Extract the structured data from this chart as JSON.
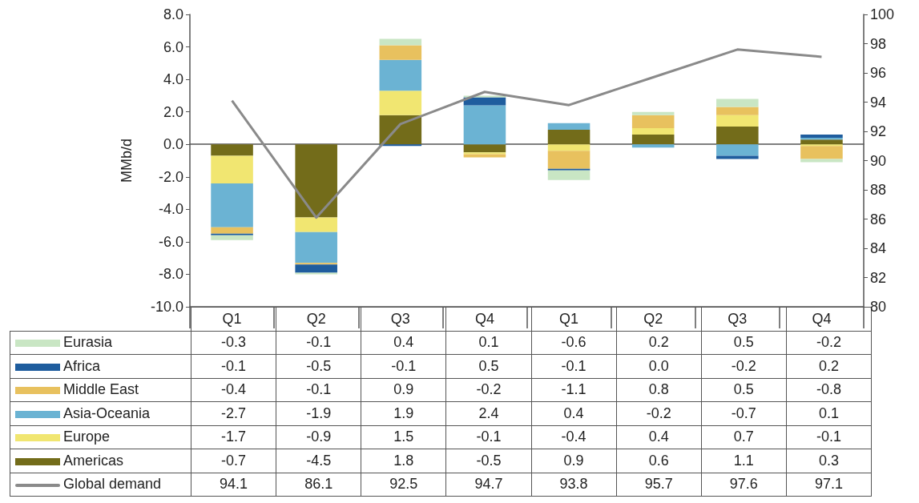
{
  "chart_data": {
    "type": "bar",
    "stacked": true,
    "ylabel": "MMb/d",
    "categories": [
      "Q1",
      "Q2",
      "Q3",
      "Q4",
      "Q1",
      "Q2",
      "Q3",
      "Q4"
    ],
    "series": [
      {
        "name": "Americas",
        "color": "#736c1a",
        "values": [
          -0.7,
          -4.5,
          1.8,
          -0.5,
          0.9,
          0.6,
          1.1,
          0.3
        ],
        "value_labels": [
          "-0.7",
          "-4.5",
          "1.8",
          "-0.5",
          "0.9",
          "0.6",
          "1.1",
          "0.3"
        ]
      },
      {
        "name": "Europe",
        "color": "#f1e671",
        "values": [
          -1.7,
          -0.9,
          1.5,
          -0.1,
          -0.4,
          0.4,
          0.7,
          -0.1
        ],
        "value_labels": [
          "-1.7",
          "-0.9",
          "1.5",
          "-0.1",
          "-0.4",
          "0.4",
          "0.7",
          "-0.1"
        ]
      },
      {
        "name": "Asia-Oceania",
        "color": "#6bb3d3",
        "values": [
          -2.7,
          -1.9,
          1.9,
          2.4,
          0.4,
          -0.2,
          -0.7,
          0.1
        ],
        "value_labels": [
          "-2.7",
          "-1.9",
          "1.9",
          "2.4",
          "0.4",
          "-0.2",
          "-0.7",
          "0.1"
        ]
      },
      {
        "name": "Middle East",
        "color": "#e8c15e",
        "values": [
          -0.4,
          -0.1,
          0.9,
          -0.2,
          -1.1,
          0.8,
          0.5,
          -0.8
        ],
        "value_labels": [
          "-0.4",
          "-0.1",
          "0.9",
          "-0.2",
          "-1.1",
          "0.8",
          "0.5",
          "-0.8"
        ]
      },
      {
        "name": "Africa",
        "color": "#1f5d9e",
        "values": [
          -0.1,
          -0.5,
          -0.1,
          0.5,
          -0.1,
          0.0,
          -0.2,
          0.2
        ],
        "value_labels": [
          "-0.1",
          "-0.5",
          "-0.1",
          "0.5",
          "-0.1",
          "0.0",
          "-0.2",
          "0.2"
        ]
      },
      {
        "name": "Eurasia",
        "color": "#c9e6c4",
        "values": [
          -0.3,
          -0.1,
          0.4,
          0.1,
          -0.6,
          0.2,
          0.5,
          -0.2
        ],
        "value_labels": [
          "-0.3",
          "-0.1",
          "0.4",
          "0.1",
          "-0.6",
          "0.2",
          "0.5",
          "-0.2"
        ]
      },
      {
        "name": "Global demand",
        "type": "line",
        "axis": "y2",
        "color": "#8a8a8a",
        "values": [
          94.1,
          86.1,
          92.5,
          94.7,
          93.8,
          95.7,
          97.6,
          97.1
        ],
        "value_labels": [
          "94.1",
          "86.1",
          "92.5",
          "94.7",
          "93.8",
          "95.7",
          "97.6",
          "97.1"
        ]
      }
    ],
    "ylim": [
      -10,
      8
    ],
    "yticks": [
      {
        "value": -10,
        "label": "-10.0"
      },
      {
        "value": -8,
        "label": "-8.0"
      },
      {
        "value": -6,
        "label": "-6.0"
      },
      {
        "value": -4,
        "label": "-4.0"
      },
      {
        "value": -2,
        "label": "-2.0"
      },
      {
        "value": 0,
        "label": "0.0"
      },
      {
        "value": 2,
        "label": "2.0"
      },
      {
        "value": 4,
        "label": "4.0"
      },
      {
        "value": 6,
        "label": "6.0"
      },
      {
        "value": 8,
        "label": "8.0"
      }
    ],
    "y2lim": [
      80,
      100
    ],
    "y2ticks": [
      80,
      82,
      84,
      86,
      88,
      90,
      92,
      94,
      96,
      98,
      100
    ],
    "legend": "bottom",
    "marker": "none"
  }
}
